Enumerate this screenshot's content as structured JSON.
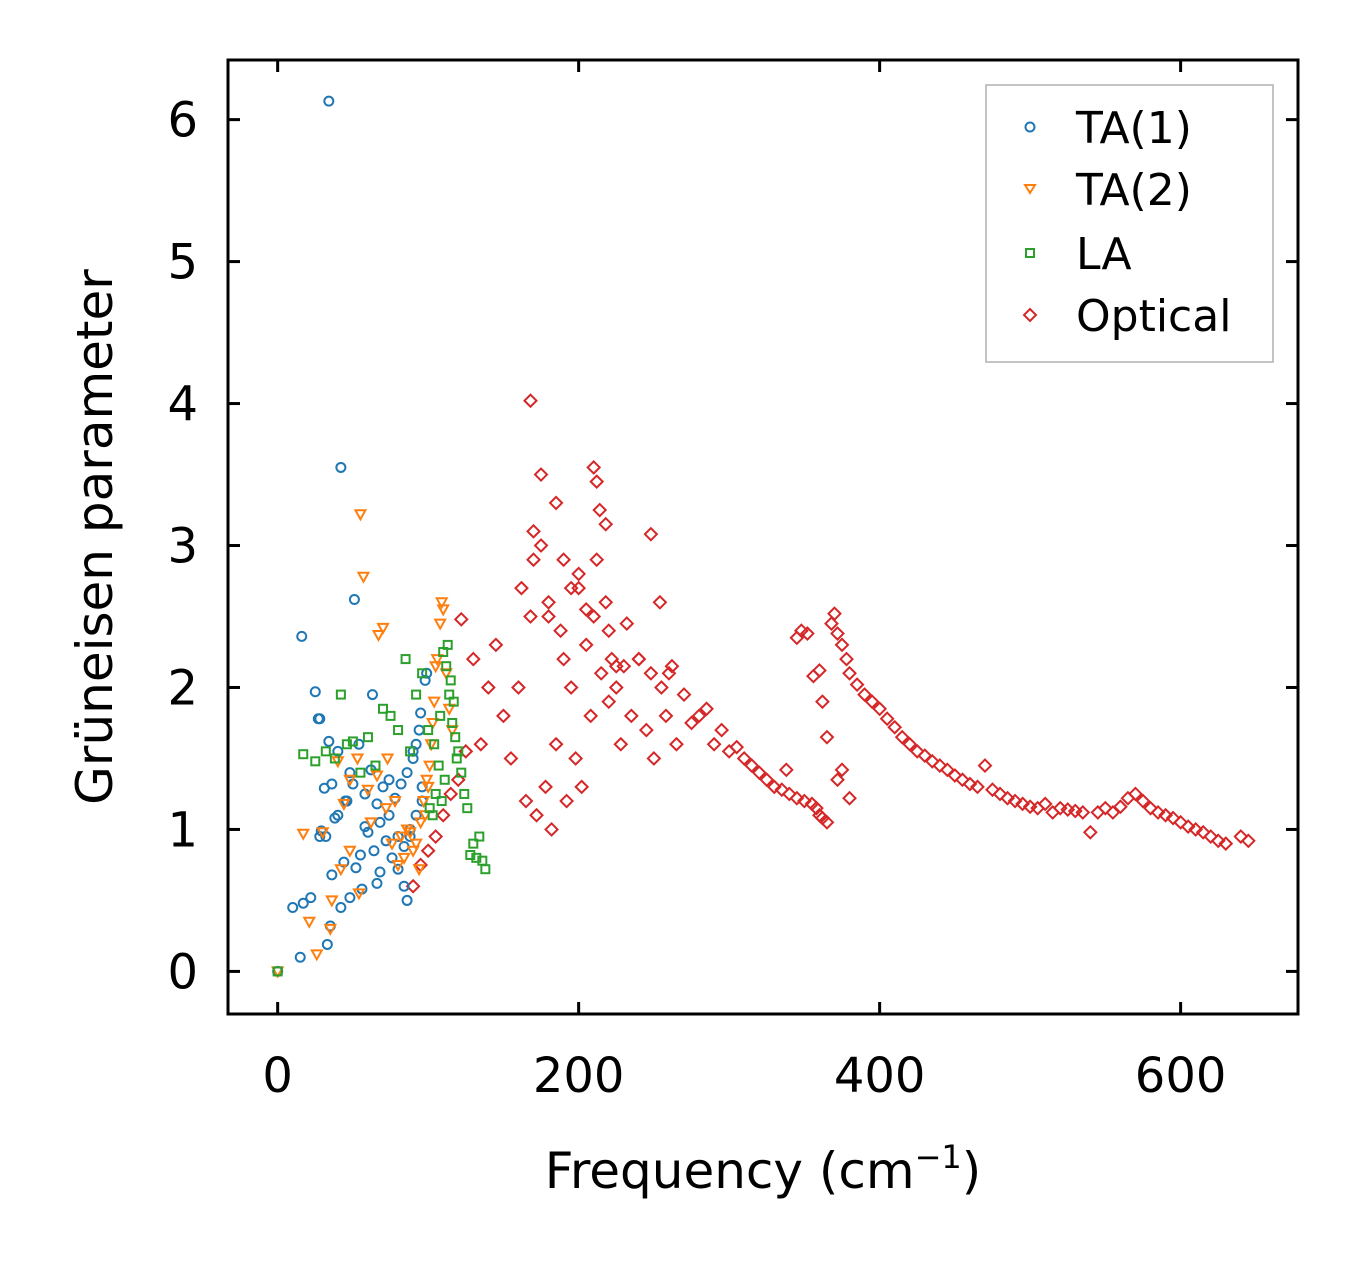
{
  "chart_data": {
    "type": "scatter",
    "title": "",
    "xlabel": "Frequency (cm",
    "xlabel_sup": "−1",
    "xlabel_close": ")",
    "ylabel": "Grüneisen parameter",
    "xlim": [
      -33,
      678
    ],
    "ylim": [
      -0.3,
      6.42
    ],
    "xticks": [
      0,
      200,
      400,
      600
    ],
    "yticks": [
      0,
      1,
      2,
      3,
      4,
      5,
      6
    ],
    "xtick_labels": [
      "0",
      "200",
      "400",
      "600"
    ],
    "ytick_labels": [
      "0",
      "1",
      "2",
      "3",
      "4",
      "5",
      "6"
    ],
    "legend_position": "top-right",
    "series": [
      {
        "name": "TA(1)",
        "marker": "circle",
        "color": "#1f77b4",
        "x": [
          0,
          10,
          15,
          17,
          22,
          25,
          27,
          28,
          29,
          31,
          33,
          34,
          35,
          36,
          38,
          40,
          42,
          44,
          46,
          48,
          50,
          52,
          54,
          56,
          58,
          60,
          62,
          64,
          66,
          68,
          70,
          72,
          74,
          76,
          78,
          80,
          82,
          84,
          86,
          88,
          90,
          92,
          94,
          96,
          98,
          34,
          42,
          51,
          16,
          28,
          63,
          36,
          45,
          55,
          68,
          74,
          80,
          86,
          90,
          95,
          32,
          40,
          48,
          58,
          66,
          84,
          88,
          92,
          96,
          99
        ],
        "y": [
          0.0,
          0.45,
          0.1,
          0.48,
          0.52,
          1.97,
          1.78,
          0.95,
          0.99,
          1.29,
          0.19,
          1.62,
          0.32,
          1.32,
          1.08,
          1.55,
          0.45,
          0.77,
          1.2,
          0.52,
          1.32,
          0.73,
          1.6,
          0.58,
          1.02,
          0.98,
          1.42,
          0.85,
          1.18,
          0.7,
          1.3,
          0.92,
          1.1,
          0.8,
          1.22,
          0.95,
          1.32,
          0.88,
          1.4,
          0.95,
          1.5,
          1.1,
          1.7,
          1.3,
          2.05,
          6.13,
          3.55,
          2.62,
          2.36,
          1.78,
          1.95,
          0.68,
          1.2,
          0.82,
          1.05,
          1.35,
          0.72,
          0.5,
          1.55,
          1.82,
          0.95,
          1.1,
          1.4,
          1.25,
          0.62,
          0.6,
          1.0,
          1.6,
          1.2,
          2.1
        ]
      },
      {
        "name": "TA(2)",
        "marker": "triangle-down",
        "color": "#ff7f0e",
        "x": [
          0,
          17,
          21,
          26,
          30,
          35,
          40,
          44,
          48,
          53,
          55,
          57,
          62,
          67,
          70,
          73,
          78,
          82,
          86,
          90,
          94,
          98,
          100,
          102,
          104,
          106,
          108,
          109,
          110,
          112,
          114,
          116,
          105,
          103,
          101,
          99,
          97,
          95,
          92,
          88,
          84,
          80,
          76,
          72,
          66,
          60,
          54,
          48,
          42,
          36
        ],
        "y": [
          0.0,
          0.97,
          0.35,
          0.12,
          0.98,
          0.3,
          1.48,
          1.18,
          1.35,
          1.5,
          3.22,
          2.78,
          1.05,
          2.37,
          2.42,
          1.5,
          1.2,
          0.95,
          1.0,
          0.85,
          0.72,
          1.1,
          1.3,
          1.6,
          1.9,
          2.2,
          2.45,
          2.6,
          2.55,
          2.1,
          1.85,
          1.7,
          2.15,
          1.75,
          1.45,
          1.35,
          1.2,
          1.05,
          0.9,
          0.98,
          0.8,
          0.75,
          0.9,
          1.15,
          1.38,
          1.28,
          0.55,
          0.85,
          0.72,
          0.5
        ]
      },
      {
        "name": "LA",
        "marker": "square",
        "color": "#2ca02c",
        "x": [
          0,
          17,
          25,
          32,
          38,
          42,
          46,
          50,
          55,
          60,
          65,
          70,
          75,
          80,
          85,
          88,
          92,
          96,
          100,
          104,
          108,
          110,
          112,
          114,
          116,
          118,
          120,
          122,
          124,
          126,
          128,
          130,
          132,
          134,
          136,
          138,
          115,
          117,
          119,
          113,
          111,
          109,
          107,
          105,
          103,
          101
        ],
        "y": [
          0.0,
          1.53,
          1.48,
          1.55,
          1.5,
          1.95,
          1.6,
          1.62,
          1.4,
          1.65,
          1.45,
          1.85,
          1.8,
          1.7,
          2.2,
          1.55,
          1.95,
          2.1,
          1.7,
          1.6,
          1.8,
          2.25,
          2.15,
          1.95,
          1.75,
          1.65,
          1.55,
          1.4,
          1.25,
          1.15,
          0.82,
          0.9,
          0.8,
          0.95,
          0.78,
          0.72,
          2.05,
          1.9,
          1.5,
          2.3,
          1.35,
          1.2,
          1.45,
          1.25,
          1.1,
          1.15
        ]
      },
      {
        "name": "Optical",
        "marker": "diamond",
        "color": "#d62728",
        "x": [
          90,
          95,
          100,
          105,
          110,
          115,
          120,
          122,
          125,
          130,
          135,
          140,
          145,
          150,
          155,
          160,
          162,
          165,
          168,
          170,
          172,
          175,
          178,
          180,
          182,
          185,
          188,
          190,
          192,
          195,
          198,
          200,
          202,
          205,
          208,
          210,
          212,
          215,
          218,
          220,
          222,
          225,
          228,
          230,
          235,
          240,
          245,
          248,
          250,
          255,
          258,
          262,
          265,
          270,
          275,
          280,
          285,
          290,
          295,
          300,
          305,
          310,
          315,
          320,
          325,
          330,
          335,
          340,
          345,
          350,
          355,
          358,
          360,
          362,
          365,
          368,
          370,
          372,
          375,
          378,
          380,
          385,
          390,
          395,
          400,
          405,
          410,
          415,
          420,
          425,
          430,
          435,
          440,
          445,
          450,
          455,
          460,
          465,
          470,
          475,
          480,
          485,
          490,
          495,
          500,
          505,
          510,
          515,
          520,
          525,
          530,
          535,
          540,
          545,
          550,
          555,
          560,
          565,
          570,
          575,
          580,
          585,
          590,
          595,
          600,
          605,
          610,
          615,
          620,
          625,
          630,
          640,
          645,
          168,
          175,
          185,
          200,
          210,
          212,
          214,
          218,
          225,
          232,
          248,
          254,
          170,
          180,
          190,
          195,
          205,
          220,
          240,
          260,
          352,
          356,
          360,
          362,
          365,
          372,
          375,
          380,
          345,
          348,
          338
        ],
        "y": [
          0.6,
          0.75,
          0.85,
          0.95,
          1.1,
          1.25,
          1.35,
          2.48,
          1.55,
          2.2,
          1.6,
          2.0,
          2.3,
          1.8,
          1.5,
          2.0,
          2.7,
          1.2,
          2.5,
          2.9,
          1.1,
          3.0,
          1.3,
          2.6,
          1.0,
          1.6,
          2.4,
          2.2,
          1.2,
          2.0,
          1.5,
          2.8,
          1.3,
          2.3,
          1.8,
          2.5,
          2.9,
          2.1,
          2.6,
          1.9,
          2.2,
          2.0,
          1.6,
          2.15,
          1.8,
          2.2,
          1.7,
          2.1,
          1.5,
          2.0,
          1.8,
          2.15,
          1.6,
          1.95,
          1.75,
          1.8,
          1.85,
          1.6,
          1.7,
          1.55,
          1.58,
          1.5,
          1.45,
          1.4,
          1.35,
          1.3,
          1.28,
          1.25,
          1.22,
          1.2,
          1.18,
          1.15,
          1.1,
          1.08,
          1.05,
          2.45,
          2.52,
          2.38,
          2.3,
          2.2,
          2.1,
          2.02,
          1.95,
          1.9,
          1.85,
          1.78,
          1.72,
          1.65,
          1.6,
          1.55,
          1.52,
          1.48,
          1.45,
          1.42,
          1.38,
          1.35,
          1.32,
          1.3,
          1.45,
          1.28,
          1.25,
          1.22,
          1.2,
          1.18,
          1.16,
          1.15,
          1.18,
          1.12,
          1.15,
          1.14,
          1.13,
          1.12,
          0.98,
          1.12,
          1.15,
          1.12,
          1.16,
          1.22,
          1.25,
          1.2,
          1.15,
          1.12,
          1.1,
          1.08,
          1.05,
          1.02,
          1.0,
          0.98,
          0.95,
          0.92,
          0.9,
          0.95,
          0.92,
          4.02,
          3.5,
          3.3,
          2.7,
          3.55,
          3.45,
          3.25,
          3.15,
          2.15,
          2.45,
          3.08,
          2.6,
          3.1,
          2.5,
          2.9,
          2.7,
          2.55,
          2.4,
          2.2,
          2.1,
          2.38,
          2.08,
          2.12,
          1.9,
          1.65,
          1.35,
          1.42,
          1.22,
          2.35,
          2.4,
          1.42
        ]
      }
    ]
  }
}
